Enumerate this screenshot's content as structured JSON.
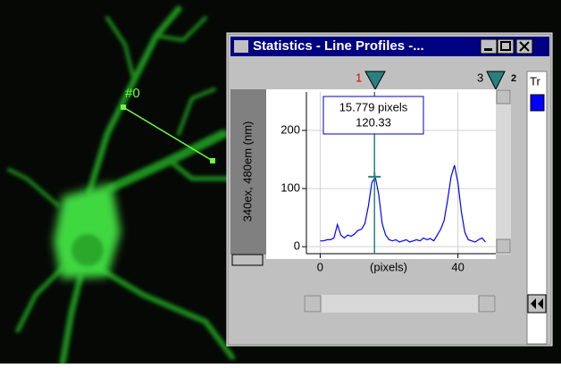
{
  "image": {
    "roi_label": "#0"
  },
  "window": {
    "title": "Statistics - Line Profiles -...",
    "markers": [
      "1",
      "3",
      "2"
    ],
    "side_panel_label": "Tr"
  },
  "chart_data": {
    "type": "line",
    "ylabel": "340ex, 480em (nm)",
    "xlabel": "(pixels)",
    "xlim": [
      -4,
      51
    ],
    "ylim": [
      -12,
      266
    ],
    "xticks": [
      0,
      40
    ],
    "yticks": [
      0,
      100,
      200
    ],
    "grid": true,
    "color": "#0000ff",
    "x": [
      0,
      1,
      2,
      3,
      4,
      5,
      6,
      7,
      8,
      9,
      10,
      11,
      12,
      13,
      14,
      15,
      16,
      17,
      18,
      19,
      20,
      21,
      22,
      23,
      24,
      25,
      26,
      27,
      28,
      29,
      30,
      31,
      32,
      33,
      34,
      35,
      36,
      37,
      38,
      39,
      40,
      41,
      42,
      43,
      44,
      45,
      46,
      47,
      48
    ],
    "values": [
      10,
      10,
      12,
      12,
      15,
      38,
      20,
      15,
      20,
      18,
      22,
      28,
      30,
      40,
      70,
      110,
      120,
      90,
      40,
      20,
      12,
      10,
      12,
      8,
      10,
      12,
      8,
      10,
      12,
      10,
      15,
      12,
      14,
      10,
      20,
      30,
      45,
      80,
      120,
      140,
      110,
      60,
      25,
      12,
      10,
      8,
      12,
      15,
      8
    ],
    "annotation": {
      "x": 15.779,
      "y": 120.33,
      "x_label": "15.779 pixels"
    }
  }
}
